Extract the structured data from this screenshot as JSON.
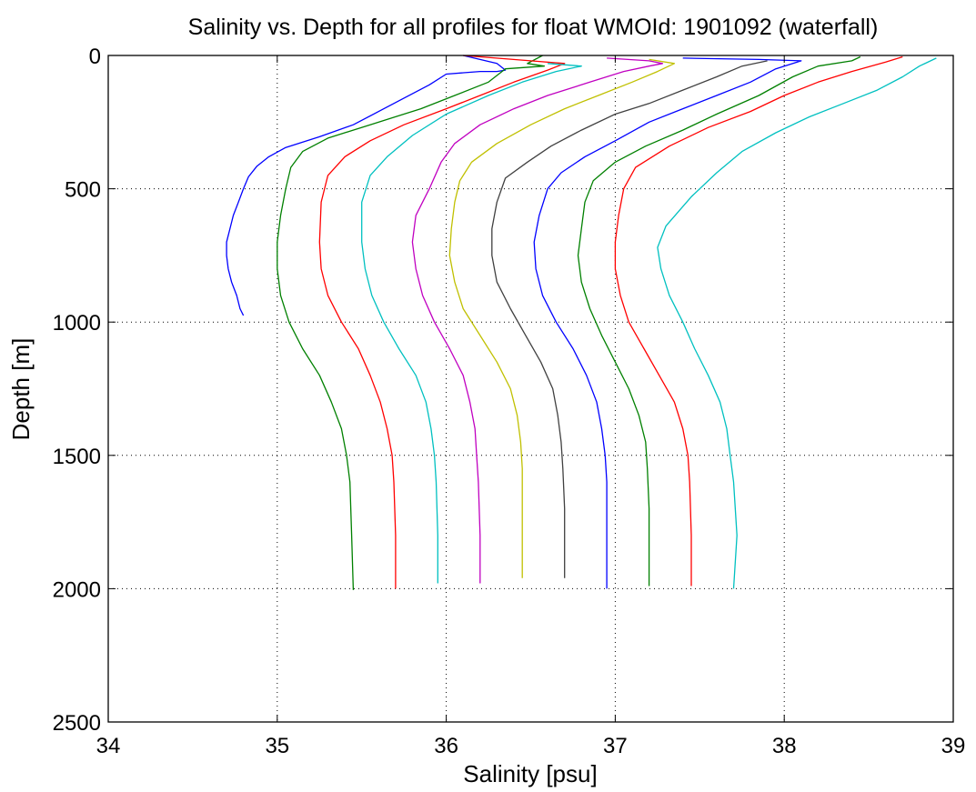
{
  "chart_data": {
    "type": "line",
    "title": "Salinity vs. Depth for all profiles for float WMOId: 1901092 (waterfall)",
    "xlabel": "Salinity [psu]",
    "ylabel": "Depth [m]",
    "xlim": [
      34,
      39
    ],
    "ylim": [
      0,
      2500
    ],
    "y_reversed": true,
    "grid": true,
    "grid_style": "dotted",
    "xticks": [
      34,
      35,
      36,
      37,
      38,
      39
    ],
    "yticks": [
      0,
      500,
      1000,
      1500,
      2000,
      2500
    ],
    "series": [
      {
        "color": "#0000ff",
        "points": [
          [
            36.1,
            0
          ],
          [
            36.3,
            30
          ],
          [
            36.35,
            55
          ],
          [
            36.3,
            60
          ],
          [
            36.2,
            60
          ],
          [
            36.0,
            70
          ],
          [
            35.9,
            110
          ],
          [
            35.75,
            160
          ],
          [
            35.6,
            210
          ],
          [
            35.45,
            260
          ],
          [
            35.25,
            305
          ],
          [
            35.05,
            345
          ],
          [
            34.95,
            380
          ],
          [
            34.88,
            415
          ],
          [
            34.83,
            455
          ],
          [
            34.8,
            500
          ],
          [
            34.77,
            550
          ],
          [
            34.74,
            600
          ],
          [
            34.72,
            650
          ],
          [
            34.7,
            700
          ],
          [
            34.7,
            750
          ],
          [
            34.71,
            800
          ],
          [
            34.73,
            850
          ],
          [
            34.76,
            900
          ],
          [
            34.78,
            950
          ],
          [
            34.8,
            975
          ]
        ]
      },
      {
        "color": "#008000",
        "points": [
          [
            36.57,
            0
          ],
          [
            36.48,
            30
          ],
          [
            36.58,
            40
          ],
          [
            36.35,
            50
          ],
          [
            36.25,
            100
          ],
          [
            36.05,
            150
          ],
          [
            35.85,
            200
          ],
          [
            35.55,
            260
          ],
          [
            35.3,
            310
          ],
          [
            35.15,
            360
          ],
          [
            35.08,
            420
          ],
          [
            35.05,
            500
          ],
          [
            35.02,
            600
          ],
          [
            35.0,
            700
          ],
          [
            35.0,
            800
          ],
          [
            35.02,
            900
          ],
          [
            35.07,
            1000
          ],
          [
            35.15,
            1100
          ],
          [
            35.25,
            1200
          ],
          [
            35.32,
            1300
          ],
          [
            35.38,
            1400
          ],
          [
            35.41,
            1500
          ],
          [
            35.43,
            1600
          ],
          [
            35.44,
            1800
          ],
          [
            35.45,
            2005
          ]
        ]
      },
      {
        "color": "#ff0000",
        "points": [
          [
            36.1,
            0
          ],
          [
            36.5,
            20
          ],
          [
            36.7,
            30
          ],
          [
            36.6,
            55
          ],
          [
            36.4,
            100
          ],
          [
            36.2,
            150
          ],
          [
            36.0,
            200
          ],
          [
            35.75,
            260
          ],
          [
            35.55,
            320
          ],
          [
            35.4,
            380
          ],
          [
            35.3,
            450
          ],
          [
            35.26,
            550
          ],
          [
            35.25,
            700
          ],
          [
            35.26,
            800
          ],
          [
            35.3,
            900
          ],
          [
            35.38,
            1000
          ],
          [
            35.48,
            1100
          ],
          [
            35.55,
            1200
          ],
          [
            35.61,
            1300
          ],
          [
            35.65,
            1400
          ],
          [
            35.68,
            1500
          ],
          [
            35.69,
            1600
          ],
          [
            35.7,
            1800
          ],
          [
            35.7,
            2000
          ]
        ]
      },
      {
        "color": "#00c0c0",
        "points": [
          [
            36.6,
            30
          ],
          [
            36.8,
            40
          ],
          [
            36.65,
            60
          ],
          [
            36.45,
            100
          ],
          [
            36.25,
            150
          ],
          [
            36.0,
            220
          ],
          [
            35.8,
            300
          ],
          [
            35.65,
            380
          ],
          [
            35.55,
            450
          ],
          [
            35.5,
            550
          ],
          [
            35.5,
            700
          ],
          [
            35.52,
            800
          ],
          [
            35.56,
            900
          ],
          [
            35.63,
            1000
          ],
          [
            35.72,
            1100
          ],
          [
            35.82,
            1200
          ],
          [
            35.88,
            1300
          ],
          [
            35.91,
            1400
          ],
          [
            35.93,
            1500
          ],
          [
            35.94,
            1600
          ],
          [
            35.95,
            1800
          ],
          [
            35.95,
            1980
          ]
        ]
      },
      {
        "color": "#c000c0",
        "points": [
          [
            36.95,
            10
          ],
          [
            37.2,
            20
          ],
          [
            37.28,
            30
          ],
          [
            37.2,
            40
          ],
          [
            37.05,
            60
          ],
          [
            36.85,
            100
          ],
          [
            36.6,
            150
          ],
          [
            36.4,
            200
          ],
          [
            36.2,
            260
          ],
          [
            36.05,
            330
          ],
          [
            35.97,
            400
          ],
          [
            35.9,
            500
          ],
          [
            35.82,
            600
          ],
          [
            35.8,
            700
          ],
          [
            35.82,
            800
          ],
          [
            35.86,
            900
          ],
          [
            35.93,
            1000
          ],
          [
            36.02,
            1100
          ],
          [
            36.1,
            1200
          ],
          [
            36.14,
            1300
          ],
          [
            36.17,
            1400
          ],
          [
            36.18,
            1500
          ],
          [
            36.19,
            1600
          ],
          [
            36.2,
            1800
          ],
          [
            36.2,
            1980
          ]
        ]
      },
      {
        "color": "#c0c000",
        "points": [
          [
            37.2,
            15
          ],
          [
            37.35,
            30
          ],
          [
            37.25,
            60
          ],
          [
            37.1,
            100
          ],
          [
            36.9,
            150
          ],
          [
            36.7,
            200
          ],
          [
            36.5,
            260
          ],
          [
            36.3,
            330
          ],
          [
            36.15,
            400
          ],
          [
            36.08,
            470
          ],
          [
            36.05,
            550
          ],
          [
            36.03,
            650
          ],
          [
            36.02,
            750
          ],
          [
            36.05,
            850
          ],
          [
            36.1,
            950
          ],
          [
            36.2,
            1050
          ],
          [
            36.3,
            1150
          ],
          [
            36.38,
            1250
          ],
          [
            36.42,
            1350
          ],
          [
            36.44,
            1450
          ],
          [
            36.45,
            1550
          ],
          [
            36.45,
            1700
          ],
          [
            36.45,
            1960
          ]
        ]
      },
      {
        "color": "#404040",
        "points": [
          [
            37.9,
            20
          ],
          [
            37.75,
            40
          ],
          [
            37.6,
            80
          ],
          [
            37.4,
            130
          ],
          [
            37.2,
            180
          ],
          [
            37.0,
            220
          ],
          [
            36.8,
            280
          ],
          [
            36.62,
            340
          ],
          [
            36.48,
            400
          ],
          [
            36.35,
            460
          ],
          [
            36.3,
            550
          ],
          [
            36.27,
            650
          ],
          [
            36.27,
            750
          ],
          [
            36.3,
            850
          ],
          [
            36.38,
            950
          ],
          [
            36.47,
            1050
          ],
          [
            36.56,
            1150
          ],
          [
            36.63,
            1250
          ],
          [
            36.66,
            1350
          ],
          [
            36.68,
            1450
          ],
          [
            36.69,
            1550
          ],
          [
            36.7,
            1700
          ],
          [
            36.7,
            1960
          ]
        ]
      },
      {
        "color": "#0000ff",
        "points": [
          [
            37.4,
            10
          ],
          [
            37.85,
            15
          ],
          [
            38.1,
            20
          ],
          [
            37.95,
            50
          ],
          [
            37.8,
            100
          ],
          [
            37.6,
            150
          ],
          [
            37.4,
            200
          ],
          [
            37.2,
            250
          ],
          [
            37.0,
            320
          ],
          [
            36.82,
            380
          ],
          [
            36.68,
            440
          ],
          [
            36.6,
            500
          ],
          [
            36.55,
            600
          ],
          [
            36.52,
            700
          ],
          [
            36.53,
            800
          ],
          [
            36.57,
            900
          ],
          [
            36.65,
            1000
          ],
          [
            36.75,
            1100
          ],
          [
            36.83,
            1200
          ],
          [
            36.89,
            1300
          ],
          [
            36.92,
            1400
          ],
          [
            36.94,
            1500
          ],
          [
            36.95,
            1600
          ],
          [
            36.95,
            1800
          ],
          [
            36.95,
            2000
          ]
        ]
      },
      {
        "color": "#008000",
        "points": [
          [
            38.45,
            5
          ],
          [
            38.4,
            20
          ],
          [
            38.2,
            40
          ],
          [
            38.05,
            80
          ],
          [
            37.85,
            150
          ],
          [
            37.6,
            220
          ],
          [
            37.4,
            280
          ],
          [
            37.18,
            340
          ],
          [
            37.0,
            400
          ],
          [
            36.87,
            470
          ],
          [
            36.82,
            550
          ],
          [
            36.8,
            650
          ],
          [
            36.78,
            750
          ],
          [
            36.8,
            850
          ],
          [
            36.85,
            950
          ],
          [
            36.92,
            1050
          ],
          [
            37.0,
            1150
          ],
          [
            37.08,
            1250
          ],
          [
            37.14,
            1350
          ],
          [
            37.18,
            1450
          ],
          [
            37.19,
            1550
          ],
          [
            37.2,
            1700
          ],
          [
            37.2,
            1990
          ]
        ]
      },
      {
        "color": "#ff0000",
        "points": [
          [
            38.7,
            5
          ],
          [
            38.6,
            25
          ],
          [
            38.4,
            60
          ],
          [
            38.2,
            100
          ],
          [
            38.0,
            150
          ],
          [
            37.8,
            210
          ],
          [
            37.55,
            270
          ],
          [
            37.32,
            340
          ],
          [
            37.12,
            420
          ],
          [
            37.05,
            500
          ],
          [
            37.02,
            600
          ],
          [
            37.0,
            700
          ],
          [
            37.0,
            800
          ],
          [
            37.03,
            900
          ],
          [
            37.08,
            1000
          ],
          [
            37.17,
            1100
          ],
          [
            37.26,
            1200
          ],
          [
            37.35,
            1300
          ],
          [
            37.4,
            1400
          ],
          [
            37.43,
            1500
          ],
          [
            37.44,
            1600
          ],
          [
            37.45,
            1800
          ],
          [
            37.45,
            1990
          ]
        ]
      },
      {
        "color": "#00c0c0",
        "points": [
          [
            38.9,
            10
          ],
          [
            38.8,
            40
          ],
          [
            38.7,
            80
          ],
          [
            38.55,
            130
          ],
          [
            38.35,
            180
          ],
          [
            38.15,
            230
          ],
          [
            37.95,
            290
          ],
          [
            37.75,
            360
          ],
          [
            37.6,
            440
          ],
          [
            37.45,
            530
          ],
          [
            37.3,
            640
          ],
          [
            37.25,
            720
          ],
          [
            37.27,
            800
          ],
          [
            37.32,
            900
          ],
          [
            37.4,
            1000
          ],
          [
            37.47,
            1100
          ],
          [
            37.55,
            1200
          ],
          [
            37.62,
            1300
          ],
          [
            37.66,
            1400
          ],
          [
            37.68,
            1500
          ],
          [
            37.7,
            1600
          ],
          [
            37.72,
            1800
          ],
          [
            37.7,
            2000
          ]
        ]
      }
    ]
  }
}
